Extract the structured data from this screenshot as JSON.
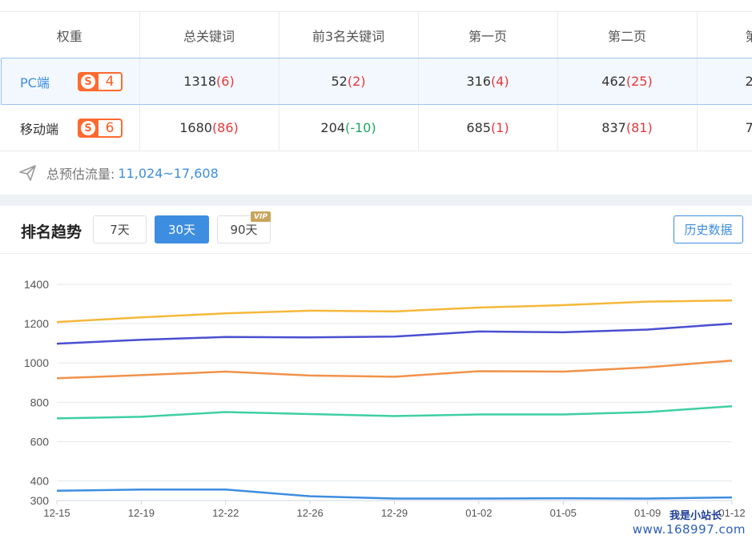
{
  "table": {
    "headers": [
      "权重",
      "总关键词",
      "前3名关键词",
      "第一页",
      "第二页",
      "第"
    ],
    "rows": [
      {
        "device": "PC端",
        "badge_letter": "S",
        "badge_level": "4",
        "cells": [
          {
            "main": "1318",
            "delta": "(6)",
            "trend": "up"
          },
          {
            "main": "52",
            "delta": "(2)",
            "trend": "up"
          },
          {
            "main": "316",
            "delta": "(4)",
            "trend": "up"
          },
          {
            "main": "462",
            "delta": "(25)",
            "trend": "up"
          },
          {
            "main": "2",
            "delta": "",
            "trend": "up"
          }
        ]
      },
      {
        "device": "移动端",
        "badge_letter": "S",
        "badge_level": "6",
        "cells": [
          {
            "main": "1680",
            "delta": "(86)",
            "trend": "up"
          },
          {
            "main": "204",
            "delta": "(-10)",
            "trend": "down"
          },
          {
            "main": "685",
            "delta": "(1)",
            "trend": "up"
          },
          {
            "main": "837",
            "delta": "(81)",
            "trend": "up"
          },
          {
            "main": "7",
            "delta": "",
            "trend": "up"
          }
        ]
      }
    ]
  },
  "flow": {
    "label": "总预估流量:",
    "value": "11,024~17,608",
    "icon": "paper-plane-icon"
  },
  "trend": {
    "title": "排名趋势",
    "ranges": [
      {
        "label": "7天",
        "active": false,
        "vip": false
      },
      {
        "label": "30天",
        "active": true,
        "vip": true
      },
      {
        "label": "90天",
        "active": false,
        "vip": true
      }
    ],
    "vip_label": "VIP",
    "history_button": "历史数据"
  },
  "chart_data": {
    "type": "line",
    "x": [
      "12-15",
      "12-19",
      "12-22",
      "12-26",
      "12-29",
      "01-02",
      "01-05",
      "01-09",
      "01-12"
    ],
    "y_ticks": [
      300,
      400,
      600,
      800,
      1000,
      1200,
      1400
    ],
    "ylim": [
      300,
      1400
    ],
    "grid": true,
    "series": [
      {
        "color": "#f5b83a",
        "values": [
          1208,
          1232,
          1252,
          1266,
          1262,
          1282,
          1294,
          1312,
          1318
        ]
      },
      {
        "color": "#4a4fd1",
        "values": [
          1098,
          1118,
          1132,
          1130,
          1134,
          1160,
          1156,
          1170,
          1200
        ]
      },
      {
        "color": "#f0924a",
        "values": [
          922,
          938,
          956,
          936,
          930,
          958,
          956,
          978,
          1012
        ]
      },
      {
        "color": "#3ecfa2",
        "values": [
          718,
          726,
          750,
          740,
          730,
          738,
          738,
          750,
          780
        ]
      },
      {
        "color": "#3d8de0",
        "values": [
          350,
          356,
          356,
          322,
          310,
          310,
          312,
          310,
          316
        ]
      }
    ]
  },
  "watermark": {
    "line1": "我是小站长",
    "line2": "www.168997.com"
  }
}
